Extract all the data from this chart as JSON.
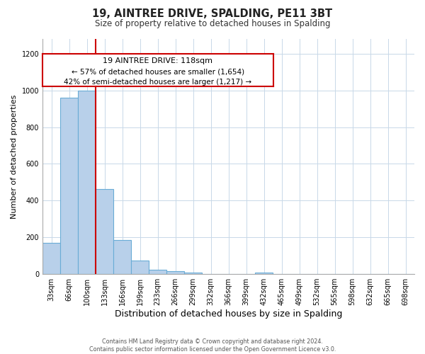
{
  "title_line1": "19, AINTREE DRIVE, SPALDING, PE11 3BT",
  "title_line2": "Size of property relative to detached houses in Spalding",
  "xlabel": "Distribution of detached houses by size in Spalding",
  "ylabel": "Number of detached properties",
  "bar_labels": [
    "33sqm",
    "66sqm",
    "100sqm",
    "133sqm",
    "166sqm",
    "199sqm",
    "233sqm",
    "266sqm",
    "299sqm",
    "332sqm",
    "366sqm",
    "399sqm",
    "432sqm",
    "465sqm",
    "499sqm",
    "532sqm",
    "565sqm",
    "598sqm",
    "632sqm",
    "665sqm",
    "698sqm"
  ],
  "bar_values": [
    170,
    960,
    1000,
    465,
    185,
    75,
    25,
    15,
    10,
    0,
    0,
    0,
    8,
    0,
    0,
    0,
    0,
    0,
    0,
    0,
    0
  ],
  "bar_color": "#b8d0ea",
  "bar_edge_color": "#6aacd6",
  "vline_color": "#cc0000",
  "ylim": [
    0,
    1280
  ],
  "yticks": [
    0,
    200,
    400,
    600,
    800,
    1000,
    1200
  ],
  "annotation_title": "19 AINTREE DRIVE: 118sqm",
  "annotation_line1": "← 57% of detached houses are smaller (1,654)",
  "annotation_line2": "42% of semi-detached houses are larger (1,217) →",
  "footer_line1": "Contains HM Land Registry data © Crown copyright and database right 2024.",
  "footer_line2": "Contains public sector information licensed under the Open Government Licence v3.0.",
  "background_color": "#ffffff",
  "grid_color": "#c8d8e8"
}
